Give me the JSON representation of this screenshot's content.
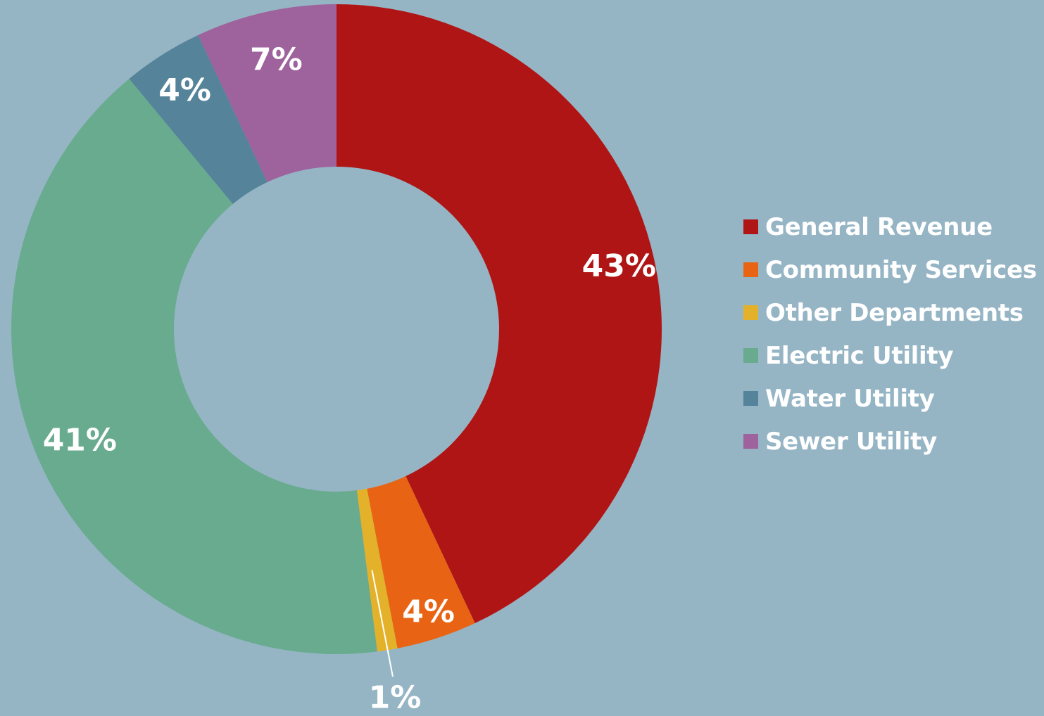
{
  "chart_data": {
    "type": "pie",
    "variant": "donut",
    "title": "",
    "legend_position": "right",
    "background_color": "#95b5c5",
    "categories": [
      "General Revenue",
      "Community Services",
      "Other Departments",
      "Electric Utility",
      "Water Utility",
      "Sewer Utility"
    ],
    "values": [
      43,
      4,
      1,
      41,
      4,
      7
    ],
    "labels": [
      "43%",
      "4%",
      "1%",
      "41%",
      "4%",
      "7%"
    ],
    "colors": [
      "#b01515",
      "#e86414",
      "#e3b22a",
      "#69ab8f",
      "#54839a",
      "#9e629c"
    ],
    "label_color": "#ffffff"
  }
}
